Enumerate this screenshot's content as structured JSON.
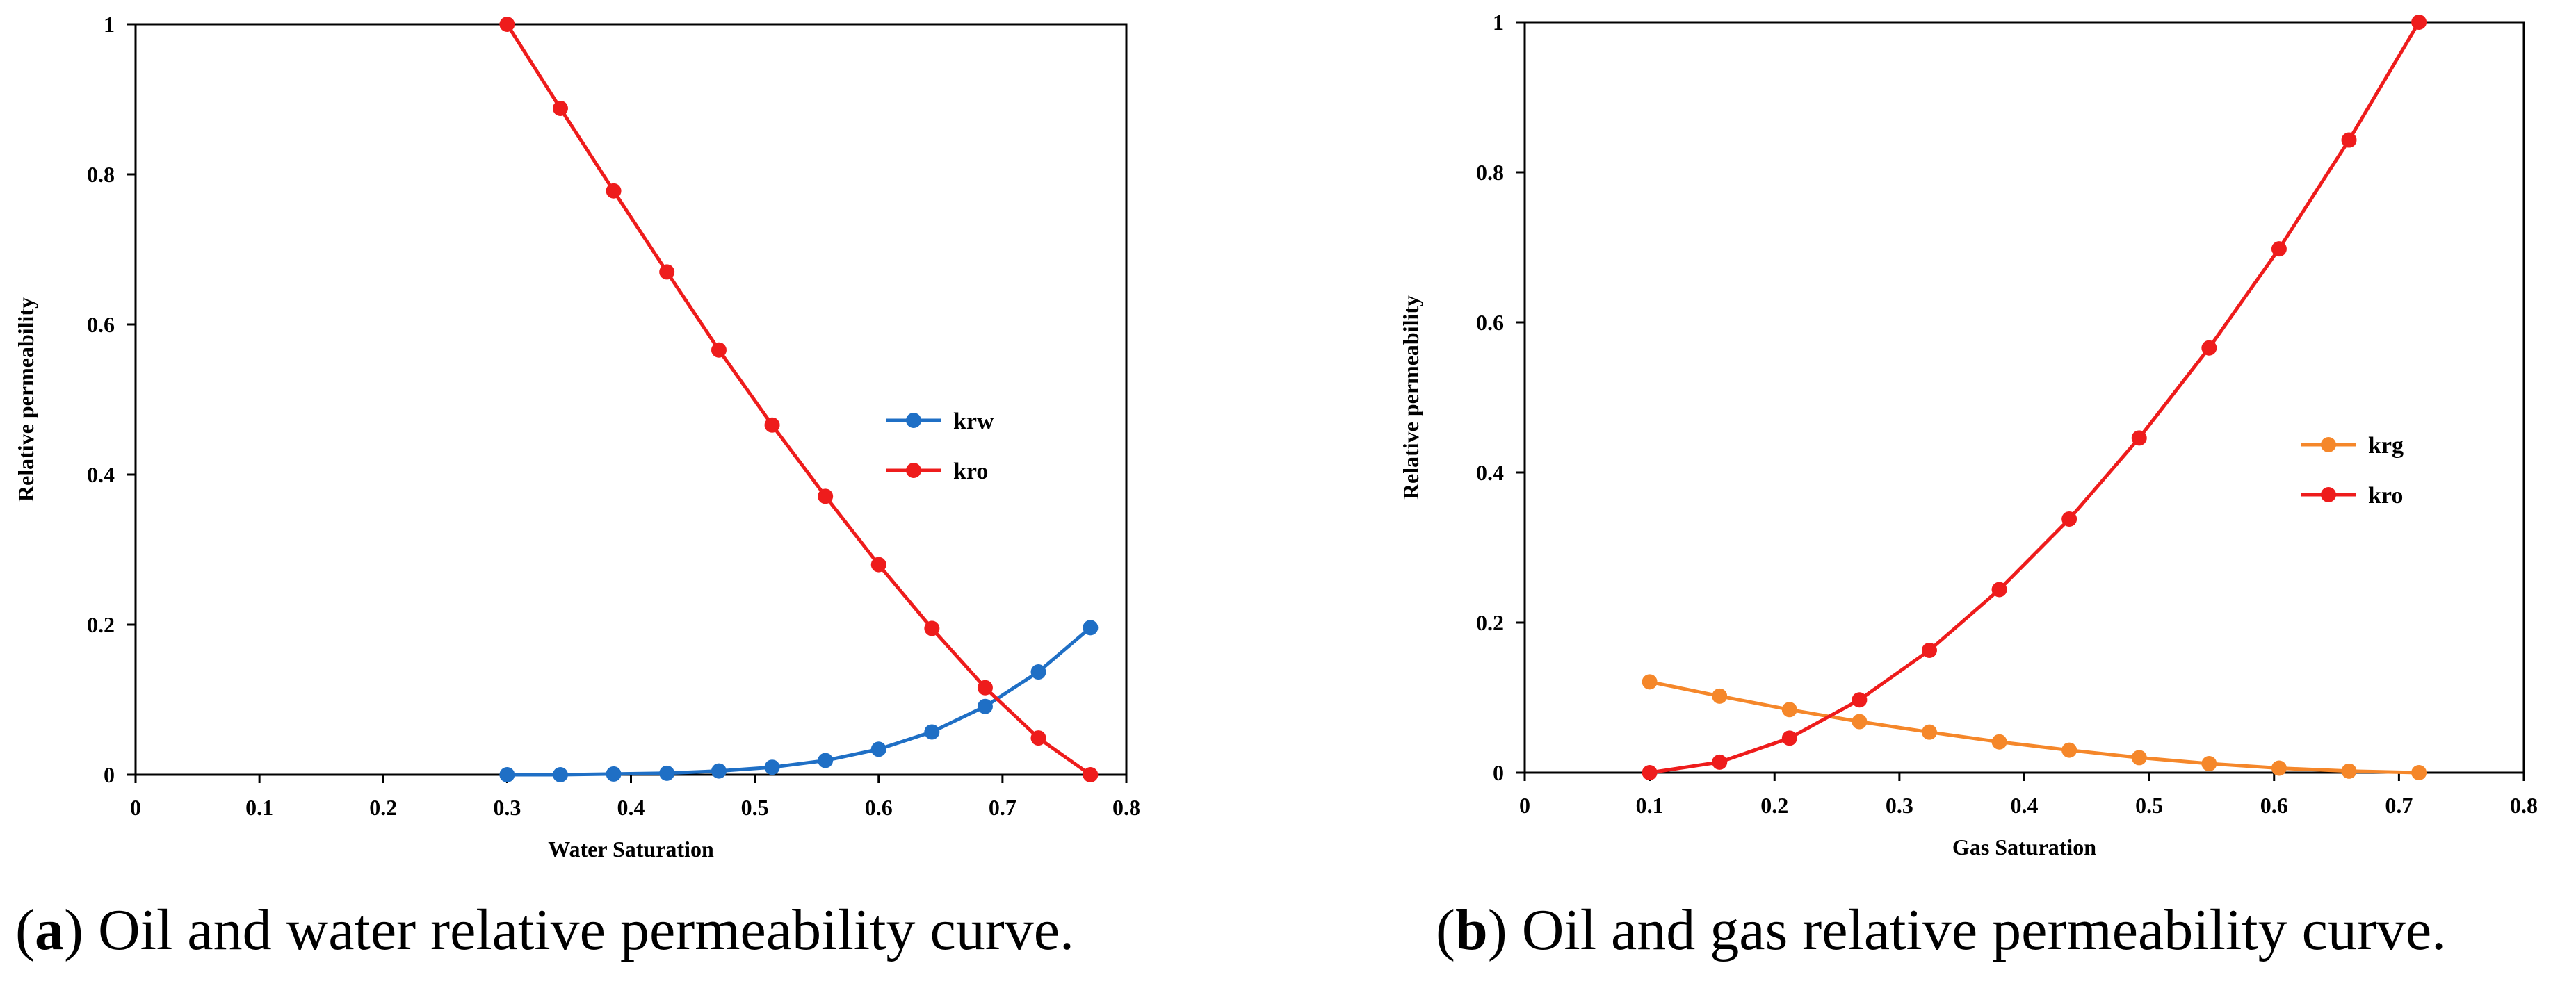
{
  "chart_data": [
    {
      "id": "a",
      "type": "line",
      "title": "",
      "xlabel": "Water Saturation",
      "ylabel": "Relative permeability",
      "xlim": [
        0,
        0.8
      ],
      "ylim": [
        0,
        1
      ],
      "xticks": [
        0,
        0.1,
        0.2,
        0.3,
        0.4,
        0.5,
        0.6,
        0.7,
        0.8
      ],
      "xtick_labels": [
        "0",
        "0.1",
        "0.2",
        "0.3",
        "0.4",
        "0.5",
        "0.6",
        "0.7",
        "0.8"
      ],
      "yticks": [
        0,
        0.2,
        0.4,
        0.6,
        0.8,
        1
      ],
      "ytick_labels": [
        "0",
        "0.2",
        "0.4",
        "0.6",
        "0.8",
        "1"
      ],
      "legend_position": "right-middle",
      "grid": false,
      "series": [
        {
          "name": "krw",
          "color": "#1f6fc5",
          "x": [
            0.3,
            0.343,
            0.386,
            0.429,
            0.471,
            0.514,
            0.557,
            0.6,
            0.643,
            0.686,
            0.729,
            0.771
          ],
          "y": [
            0.0,
            0.0,
            0.001,
            0.002,
            0.005,
            0.01,
            0.019,
            0.034,
            0.057,
            0.091,
            0.137,
            0.196
          ]
        },
        {
          "name": "kro",
          "color": "#ee1c1c",
          "x": [
            0.3,
            0.343,
            0.386,
            0.429,
            0.471,
            0.514,
            0.557,
            0.6,
            0.643,
            0.686,
            0.729,
            0.771
          ],
          "y": [
            1.0,
            0.888,
            0.778,
            0.67,
            0.566,
            0.466,
            0.371,
            0.28,
            0.195,
            0.116,
            0.049,
            0.0
          ]
        }
      ]
    },
    {
      "id": "b",
      "type": "line",
      "title": "",
      "xlabel": "Gas Saturation",
      "ylabel": "Relative permeability",
      "xlim": [
        0,
        0.8
      ],
      "ylim": [
        0,
        1
      ],
      "xticks": [
        0,
        0.1,
        0.2,
        0.3,
        0.4,
        0.5,
        0.6,
        0.7,
        0.8
      ],
      "xtick_labels": [
        "0",
        "0.1",
        "0.2",
        "0.3",
        "0.4",
        "0.5",
        "0.6",
        "0.7",
        "0.8"
      ],
      "yticks": [
        0,
        0.2,
        0.4,
        0.6,
        0.8,
        1
      ],
      "ytick_labels": [
        "0",
        "0.2",
        "0.4",
        "0.6",
        "0.8",
        "1"
      ],
      "legend_position": "right-middle",
      "grid": false,
      "series": [
        {
          "name": "krg",
          "color": "#f5872a",
          "x": [
            0.1,
            0.156,
            0.212,
            0.268,
            0.324,
            0.38,
            0.436,
            0.492,
            0.548,
            0.604,
            0.66,
            0.716
          ],
          "y": [
            0.121,
            0.102,
            0.084,
            0.068,
            0.054,
            0.041,
            0.03,
            0.02,
            0.012,
            0.006,
            0.002,
            0.0
          ]
        },
        {
          "name": "kro",
          "color": "#ee1c1c",
          "x": [
            0.1,
            0.156,
            0.212,
            0.268,
            0.324,
            0.38,
            0.436,
            0.492,
            0.548,
            0.604,
            0.66,
            0.716
          ],
          "y": [
            0.0,
            0.014,
            0.046,
            0.097,
            0.163,
            0.244,
            0.338,
            0.446,
            0.566,
            0.698,
            0.843,
            1.0
          ]
        }
      ]
    }
  ],
  "captions": [
    {
      "letter": "a",
      "text": " Oil and water relative permeability curve."
    },
    {
      "letter": "b",
      "text": " Oil and gas relative permeability curve."
    }
  ]
}
